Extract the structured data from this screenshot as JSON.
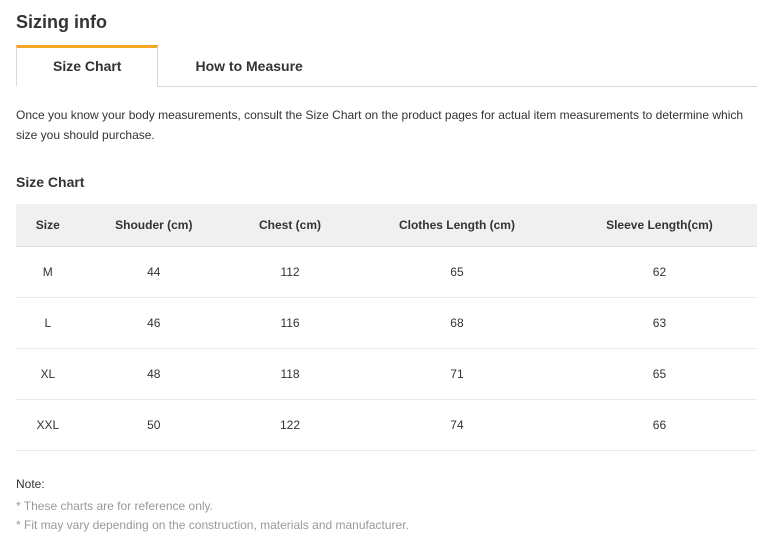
{
  "title": "Sizing info",
  "tabs": [
    {
      "label": "Size Chart",
      "active": true
    },
    {
      "label": "How to Measure",
      "active": false
    }
  ],
  "intro": "Once you know your body measurements, consult the Size Chart on the product pages for actual item measurements to determine which size you should purchase.",
  "subtitle": "Size Chart",
  "table": {
    "type": "table",
    "columns": [
      "Size",
      "Shouder (cm)",
      "Chest (cm)",
      "Clothes Length (cm)",
      "Sleeve Length(cm)"
    ],
    "rows": [
      [
        "M",
        "44",
        "112",
        "65",
        "62"
      ],
      [
        "L",
        "46",
        "116",
        "68",
        "63"
      ],
      [
        "XL",
        "48",
        "118",
        "71",
        "65"
      ],
      [
        "XXL",
        "50",
        "122",
        "74",
        "66"
      ]
    ],
    "header_bg": "#f0f0f0",
    "border_color": "#e9e9e9",
    "header_fontsize": 12,
    "cell_fontsize": 12
  },
  "note_title": "Note:",
  "notes": [
    "* These charts are for reference only.",
    "* Fit may vary depending on the construction, materials and manufacturer."
  ],
  "colors": {
    "accent": "#f5a623",
    "text": "#333333",
    "muted": "#999999",
    "border": "#d9d9d9",
    "header_bg": "#f0f0f0",
    "background": "#ffffff"
  }
}
